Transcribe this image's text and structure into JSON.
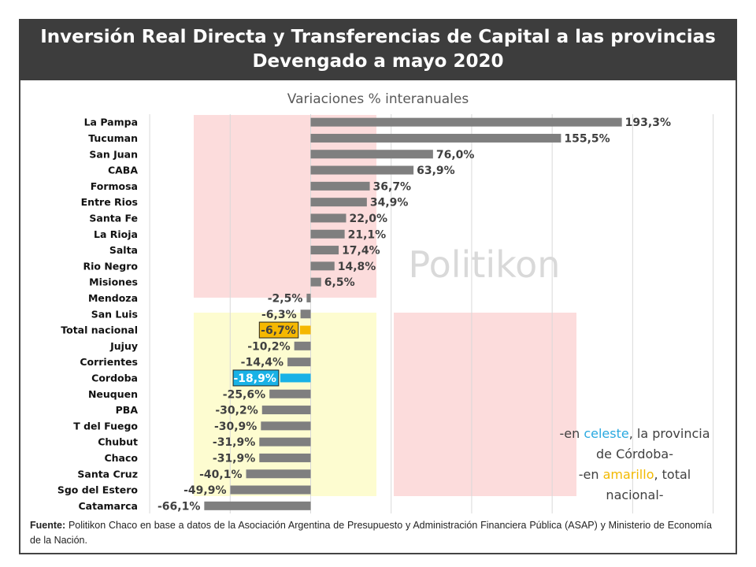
{
  "header": {
    "line1": "Inversión Real Directa y Transferencias de Capital a las provincias",
    "line2": "Devengado a mayo 2020"
  },
  "watermark": "Politikon",
  "chart_data": {
    "type": "bar",
    "orientation": "horizontal",
    "title": "Variaciones % interanuales",
    "categories": [
      "La Pampa",
      "Tucuman",
      "San Juan",
      "CABA",
      "Formosa",
      "Entre Rios",
      "Santa Fe",
      "La Rioja",
      "Salta",
      "Rio Negro",
      "Misiones",
      "Mendoza",
      "San Luis",
      "Total nacional",
      "Jujuy",
      "Corrientes",
      "Cordoba",
      "Neuquen",
      "PBA",
      "T del Fuego",
      "Chubut",
      "Chaco",
      "Santa Cruz",
      "Sgo del Estero",
      "Catamarca"
    ],
    "values": [
      193.3,
      155.5,
      76.0,
      63.9,
      36.7,
      34.9,
      22.0,
      21.1,
      17.4,
      14.8,
      6.5,
      -2.5,
      -6.3,
      -6.7,
      -10.2,
      -14.4,
      -18.9,
      -25.6,
      -30.2,
      -30.9,
      -31.9,
      -31.9,
      -40.1,
      -49.9,
      -66.1
    ],
    "labels": [
      "193,3%",
      "155,5%",
      "76,0%",
      "63,9%",
      "36,7%",
      "34,9%",
      "22,0%",
      "21,1%",
      "17,4%",
      "14,8%",
      "6,5%",
      "-2,5%",
      "-6,3%",
      "-6,7%",
      "-10,2%",
      "-14,4%",
      "-18,9%",
      "-25,6%",
      "-30,2%",
      "-30,9%",
      "-31,9%",
      "-31,9%",
      "-40,1%",
      "-49,9%",
      "-66,1%"
    ],
    "xlim": [
      -100,
      250
    ],
    "grid": true,
    "colors": {
      "default": "#7F7F7F",
      "Cordoba": "#19B2E6",
      "Total nacional": "#F5B800"
    }
  },
  "note": {
    "l1a": "-en ",
    "l1b": "celeste",
    "l1c": ", la provincia",
    "l2": "de Córdoba-",
    "l3a": "-en ",
    "l3b": "amarillo",
    "l3c": ",  total",
    "l4": "nacional-"
  },
  "source": {
    "label": "Fuente:",
    "text": " Politikon Chaco en base a datos de la Asociación Argentina de Presupuesto y Administración Financiera Pública (ASAP) y Ministerio de Economía de la Nación."
  }
}
